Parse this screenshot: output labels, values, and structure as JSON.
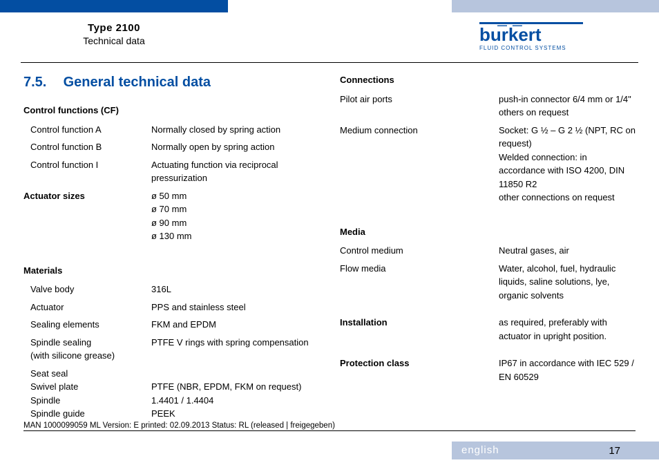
{
  "header": {
    "type": "Type 2100",
    "subtitle": "Technical data",
    "logo_main": "burkert",
    "logo_sub": "FLUID CONTROL SYSTEMS"
  },
  "section": {
    "number": "7.5.",
    "title": "General technical data"
  },
  "left": {
    "cf_head": "Control functions (CF)",
    "cf_a_label": "Control function A",
    "cf_a_value": "Normally closed by spring action",
    "cf_b_label": "Control function B",
    "cf_b_value": "Normally open by spring action",
    "cf_i_label": "Control function I",
    "cf_i_value": "Actuating function via reciprocal pressurization",
    "act_label": "Actuator sizes",
    "act_value": "ø 50 mm\nø 70 mm\nø 90 mm\nø 130 mm",
    "mat_head": "Materials",
    "valve_body_label": "Valve body",
    "valve_body_value": "316L",
    "actuator_label": "Actuator",
    "actuator_value": "PPS and stainless steel",
    "sealing_label": "Sealing elements",
    "sealing_value": "FKM and EPDM",
    "spindle_sealing_label": "Spindle sealing\n(with silicone grease)",
    "spindle_sealing_value": "PTFE V rings with spring compensation",
    "seat_seal_label": "Seat seal",
    "swivel_label": "Swivel plate",
    "swivel_value": "PTFE (NBR, EPDM, FKM on request)",
    "spindle_label": "Spindle",
    "spindle_value": "1.4401 / 1.4404",
    "spindle_guide_label": "Spindle guide",
    "spindle_guide_value": "PEEK"
  },
  "right": {
    "conn_head": "Connections",
    "pilot_label": "Pilot air ports",
    "pilot_value": "push-in connector 6/4 mm or 1/4\" others on request",
    "medium_conn_label": "Medium connection",
    "medium_conn_value": "Socket: G ½ – G 2 ½ (NPT, RC on request)\nWelded connection: in accordance with ISO 4200, DIN 11850 R2\nother connections on request",
    "media_head": "Media",
    "control_medium_label": "Control medium",
    "control_medium_value": "Neutral gases, air",
    "flow_media_label": "Flow media",
    "flow_media_value": "Water, alcohol, fuel, hydraulic liquids, saline solutions, lye, organic solvents",
    "install_label": "Installation",
    "install_value": "as required, preferably with actuator in upright position.",
    "protect_label": "Protection class",
    "protect_value": "IP67 in accordance with IEC 529 / EN 60529"
  },
  "footer": {
    "docline": "MAN  1000099059  ML  Version: E  printed: 02.09.2013 Status: RL (released | freigegeben)",
    "language": "english",
    "page": "17"
  }
}
